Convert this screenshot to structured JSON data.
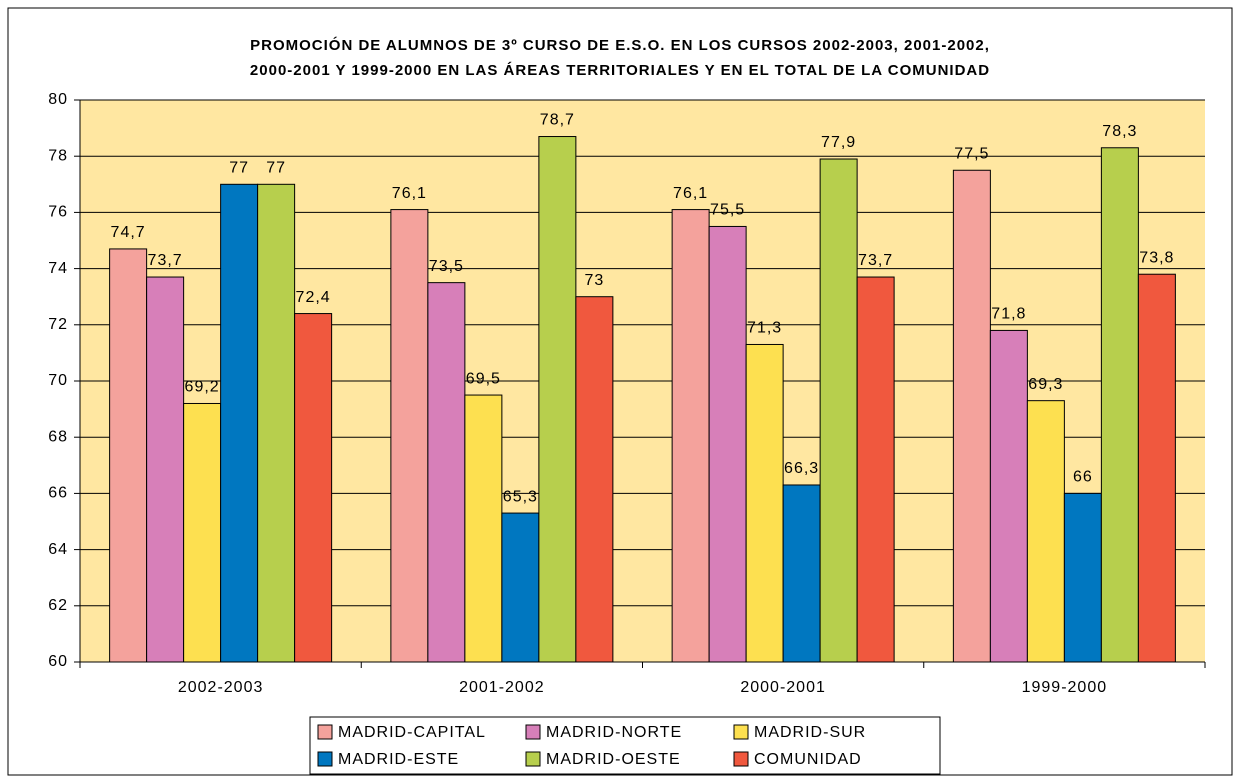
{
  "chart_data": {
    "type": "bar",
    "title": [
      "PROMOCIÓN DE ALUMNOS DE 3º CURSO DE E.S.O. EN LOS CURSOS 2002-2003, 2001-2002,",
      "2000-2001 Y 1999-2000 EN LAS ÁREAS TERRITORIALES  Y EN EL TOTAL DE LA COMUNIDAD"
    ],
    "categories": [
      "2002-2003",
      "2001-2002",
      "2000-2001",
      "1999-2000"
    ],
    "series": [
      {
        "name": "MADRID-CAPITAL",
        "color": "#f4a29c",
        "values": [
          74.7,
          76.1,
          76.1,
          77.5
        ],
        "value_labels": [
          "74,7",
          "76,1",
          "76,1",
          "77,5"
        ]
      },
      {
        "name": "MADRID-NORTE",
        "color": "#d77fb9",
        "values": [
          73.7,
          73.5,
          75.5,
          71.8
        ],
        "value_labels": [
          "73,7",
          "73,5",
          "75,5",
          "71,8"
        ]
      },
      {
        "name": "MADRID-SUR",
        "color": "#fde050",
        "values": [
          69.2,
          69.5,
          71.3,
          69.3
        ],
        "value_labels": [
          "69,2",
          "69,5",
          "71,3",
          "69,3"
        ]
      },
      {
        "name": "MADRID-ESTE",
        "color": "#0077c0",
        "values": [
          77,
          65.3,
          66.3,
          66
        ],
        "value_labels": [
          "77",
          "65,3",
          "66,3",
          "66"
        ]
      },
      {
        "name": "MADRID-OESTE",
        "color": "#b7cf4d",
        "values": [
          77,
          78.7,
          77.9,
          78.3
        ],
        "value_labels": [
          "77",
          "78,7",
          "77,9",
          "78,3"
        ]
      },
      {
        "name": "COMUNIDAD",
        "color": "#f0583e",
        "values": [
          72.4,
          73,
          73.7,
          73.8
        ],
        "value_labels": [
          "72,4",
          "73",
          "73,7",
          "73,8"
        ]
      }
    ],
    "ylim": [
      60,
      80
    ],
    "yticks": [
      60,
      62,
      64,
      66,
      68,
      70,
      72,
      74,
      76,
      78,
      80
    ],
    "grid": true,
    "legend": "bottom"
  }
}
